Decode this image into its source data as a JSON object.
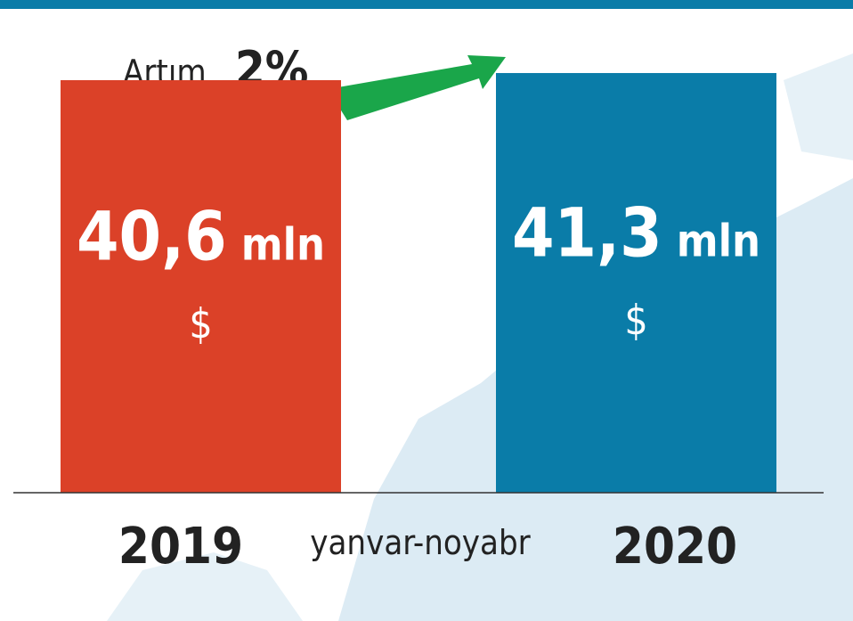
{
  "chart_data": {
    "type": "bar",
    "categories": [
      "2019",
      "2020"
    ],
    "values": [
      40.6,
      41.3
    ],
    "value_labels": [
      "40,6",
      "41,3"
    ],
    "value_unit": "mln",
    "currency": "$",
    "colors": [
      "#db4128",
      "#0a7ca8"
    ],
    "x_label": "yanvar-noyabr",
    "change_label": "Artım",
    "change": "2%",
    "ylim": [
      0,
      42
    ]
  }
}
